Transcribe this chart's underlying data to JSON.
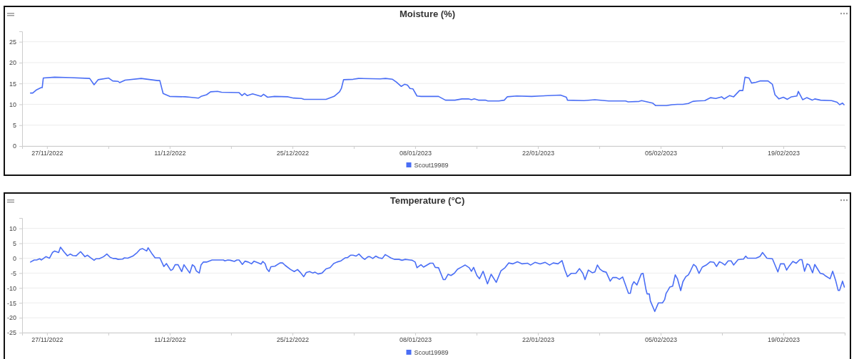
{
  "chart_data": [
    {
      "type": "line",
      "title": "Moisture (%)",
      "legend": "bottom",
      "grid": "y",
      "marker": "none",
      "line_style": "solid",
      "xlim": [
        "2022-11-24T04:00",
        "2023-02-26T00:00"
      ],
      "xticks": [
        {
          "value": "2022-11-27",
          "label": "27/11/2022"
        },
        {
          "value": "2022-12-04",
          "label": null
        },
        {
          "value": "2022-12-11",
          "label": "11/12/2022"
        },
        {
          "value": "2022-12-18",
          "label": null
        },
        {
          "value": "2022-12-25",
          "label": "25/12/2022"
        },
        {
          "value": "2023-01-01",
          "label": null
        },
        {
          "value": "2023-01-08",
          "label": "08/01/2023"
        },
        {
          "value": "2023-01-15",
          "label": null
        },
        {
          "value": "2023-01-22",
          "label": "22/01/2023"
        },
        {
          "value": "2023-01-29",
          "label": null
        },
        {
          "value": "2023-02-05",
          "label": "05/02/2023"
        },
        {
          "value": "2023-02-12",
          "label": null
        },
        {
          "value": "2023-02-19",
          "label": "19/02/2023"
        },
        {
          "value": "2023-02-26",
          "label": null
        }
      ],
      "ylim": [
        0,
        27.5
      ],
      "yticks": [
        0,
        5,
        10,
        15,
        20,
        25
      ],
      "x": [
        "2022-11-25T03:00",
        "2022-11-25T09:00",
        "2022-11-25T20:00",
        "2022-11-26T08:00",
        "2022-11-26T11:00",
        "2022-11-26T14:00",
        "2022-11-27T21:00",
        "2022-11-29T17:00",
        "2022-12-01T21:00",
        "2022-12-02T09:00",
        "2022-12-02T20:00",
        "2022-12-04T01:00",
        "2022-12-04T12:00",
        "2022-12-05T03:00",
        "2022-12-05T07:00",
        "2022-12-05T22:00",
        "2022-12-07T18:00",
        "2022-12-09T15:00",
        "2022-12-09T21:00",
        "2022-12-10T06:00",
        "2022-12-11T00:00",
        "2022-12-12T18:00",
        "2022-12-13T08:00",
        "2022-12-14T07:00",
        "2022-12-14T14:00",
        "2022-12-15T05:00",
        "2022-12-15T16:00",
        "2022-12-16T11:00",
        "2022-12-16T22:00",
        "2022-12-18T22:00",
        "2022-12-19T06:00",
        "2022-12-19T13:00",
        "2022-12-19T20:00",
        "2022-12-20T11:00",
        "2022-12-21T10:00",
        "2022-12-21T17:00",
        "2022-12-22T04:00",
        "2022-12-22T23:00",
        "2022-12-24T12:00",
        "2022-12-25T03:00",
        "2022-12-26T01:00",
        "2022-12-26T08:00",
        "2022-12-28T20:00",
        "2022-12-29T18:00",
        "2022-12-30T09:00",
        "2022-12-30T14:00",
        "2022-12-30T20:00",
        "2022-12-31T22:00",
        "2023-01-01T13:00",
        "2023-01-04T00:00",
        "2023-01-04T15:00",
        "2023-01-05T10:00",
        "2023-01-05T21:00",
        "2023-01-06T10:00",
        "2023-01-06T19:00",
        "2023-01-07T03:00",
        "2023-01-07T10:00",
        "2023-01-07T18:00",
        "2023-01-08T05:00",
        "2023-01-08T16:00",
        "2023-01-10T16:00",
        "2023-01-11T11:00",
        "2023-01-12T13:00",
        "2023-01-13T08:00",
        "2023-01-14T02:00",
        "2023-01-14T10:00",
        "2023-01-14T18:00",
        "2023-01-15T05:00",
        "2023-01-16T00:00",
        "2023-01-16T07:00",
        "2023-01-17T13:00",
        "2023-01-18T04:00",
        "2023-01-18T12:00",
        "2023-01-19T14:00",
        "2023-01-21T07:00",
        "2023-01-22T06:00",
        "2023-01-24T14:00",
        "2023-01-25T06:00",
        "2023-01-25T09:00",
        "2023-01-27T06:00",
        "2023-01-28T12:00",
        "2023-01-30T02:00",
        "2023-02-01T00:00",
        "2023-02-01T07:00",
        "2023-02-02T13:00",
        "2023-02-02T20:00",
        "2023-02-04T02:00",
        "2023-02-04T10:00",
        "2023-02-05T16:00",
        "2023-02-06T07:00",
        "2023-02-06T22:00",
        "2023-02-07T13:00",
        "2023-02-08T04:00",
        "2023-02-08T16:00",
        "2023-02-09T03:00",
        "2023-02-10T01:00",
        "2023-02-10T17:00",
        "2023-02-11T07:00",
        "2023-02-11T23:00",
        "2023-02-12T06:00",
        "2023-02-12T21:00",
        "2023-02-13T08:00",
        "2023-02-14T00:00",
        "2023-02-14T09:00",
        "2023-02-14T15:00",
        "2023-02-15T02:00",
        "2023-02-15T09:00",
        "2023-02-15T21:00",
        "2023-02-16T08:00",
        "2023-02-17T06:00",
        "2023-02-17T18:00",
        "2023-02-18T01:00",
        "2023-02-18T12:00",
        "2023-02-19T00:00",
        "2023-02-19T11:00",
        "2023-02-19T22:00",
        "2023-02-20T13:00",
        "2023-02-20T17:00",
        "2023-02-21T05:00",
        "2023-02-21T16:00",
        "2023-02-22T07:00",
        "2023-02-22T14:00",
        "2023-02-23T06:00",
        "2023-02-24T12:00",
        "2023-02-25T03:00",
        "2023-02-25T10:00",
        "2023-02-25T18:00",
        "2023-02-25T22:00"
      ],
      "series": [
        {
          "name": "Scout19989",
          "color": "#4a6ef5",
          "values": [
            12.7,
            12.7,
            13.5,
            14.0,
            14.0,
            16.3,
            16.5,
            16.4,
            16.2,
            14.7,
            15.9,
            16.3,
            15.6,
            15.5,
            15.2,
            15.8,
            16.2,
            15.7,
            15.7,
            12.6,
            11.9,
            11.8,
            11.7,
            11.5,
            11.9,
            12.3,
            13.0,
            13.1,
            12.9,
            12.8,
            12.1,
            12.6,
            12.1,
            12.5,
            11.9,
            12.4,
            11.7,
            11.9,
            11.8,
            11.5,
            11.4,
            11.2,
            11.2,
            11.9,
            13.0,
            13.8,
            15.9,
            16.0,
            16.2,
            16.1,
            16.2,
            16.0,
            15.3,
            14.3,
            14.8,
            14.6,
            13.8,
            13.7,
            12.0,
            11.9,
            11.9,
            11.0,
            11.0,
            11.3,
            11.3,
            11.1,
            11.3,
            11.0,
            11.0,
            10.8,
            10.8,
            11.0,
            11.8,
            12.0,
            11.9,
            12.0,
            12.2,
            11.7,
            11.0,
            10.9,
            11.1,
            10.8,
            10.8,
            10.6,
            10.7,
            10.9,
            10.3,
            9.7,
            9.7,
            9.9,
            10.0,
            10.0,
            10.2,
            10.7,
            10.8,
            10.9,
            11.6,
            11.4,
            11.8,
            11.3,
            12.1,
            11.8,
            13.3,
            13.3,
            16.5,
            16.3,
            15.1,
            15.3,
            15.6,
            15.6,
            14.8,
            12.3,
            11.3,
            11.7,
            11.2,
            11.8,
            12.0,
            13.1,
            11.1,
            11.6,
            11.0,
            11.3,
            11.0,
            10.9,
            10.5,
            9.9,
            10.3,
            9.9
          ]
        }
      ]
    },
    {
      "type": "line",
      "title": "Temperature (°C)",
      "legend": "bottom",
      "grid": "y",
      "marker": "none",
      "line_style": "solid",
      "xlim": [
        "2022-11-24T04:00",
        "2023-02-26T00:00"
      ],
      "xticks": [
        {
          "value": "2022-11-27",
          "label": "27/11/2022"
        },
        {
          "value": "2022-12-04",
          "label": null
        },
        {
          "value": "2022-12-11",
          "label": "11/12/2022"
        },
        {
          "value": "2022-12-18",
          "label": null
        },
        {
          "value": "2022-12-25",
          "label": "25/12/2022"
        },
        {
          "value": "2023-01-01",
          "label": null
        },
        {
          "value": "2023-01-08",
          "label": "08/01/2023"
        },
        {
          "value": "2023-01-15",
          "label": null
        },
        {
          "value": "2023-01-22",
          "label": "22/01/2023"
        },
        {
          "value": "2023-01-29",
          "label": null
        },
        {
          "value": "2023-02-05",
          "label": "05/02/2023"
        },
        {
          "value": "2023-02-12",
          "label": null
        },
        {
          "value": "2023-02-19",
          "label": "19/02/2023"
        },
        {
          "value": "2023-02-26",
          "label": null
        }
      ],
      "ylim": [
        -25,
        13.5
      ],
      "yticks": [
        -25,
        -20,
        -15,
        -10,
        -5,
        0,
        5,
        10
      ],
      "x": [
        "2022-11-25T03:00",
        "2022-11-25T13:00",
        "2022-11-25T20:00",
        "2022-11-26T04:00",
        "2022-11-26T09:00",
        "2022-11-26T21:00",
        "2022-11-27T07:00",
        "2022-11-27T15:00",
        "2022-11-27T21:00",
        "2022-11-28T08:00",
        "2022-11-28T13:00",
        "2022-11-28T23:00",
        "2022-11-29T08:00",
        "2022-11-29T16:00",
        "2022-11-29T23:00",
        "2022-11-30T08:00",
        "2022-11-30T20:00",
        "2022-12-01T08:00",
        "2022-12-01T15:00",
        "2022-12-01T23:00",
        "2022-12-02T09:00",
        "2022-12-02T14:00",
        "2022-12-02T23:00",
        "2022-12-03T11:00",
        "2022-12-03T20:00",
        "2022-12-04T05:00",
        "2022-12-04T13:00",
        "2022-12-04T20:00",
        "2022-12-05T03:00",
        "2022-12-05T15:00",
        "2022-12-05T20:00",
        "2022-12-06T05:00",
        "2022-12-06T19:00",
        "2022-12-07T07:00",
        "2022-12-07T15:00",
        "2022-12-07T22:00",
        "2022-12-08T09:00",
        "2022-12-08T13:00",
        "2022-12-09T00:00",
        "2022-12-09T08:00",
        "2022-12-09T21:00",
        "2022-12-10T08:00",
        "2022-12-10T15:00",
        "2022-12-11T03:00",
        "2022-12-11T08:00",
        "2022-12-11T15:00",
        "2022-12-11T23:00",
        "2022-12-12T09:00",
        "2022-12-12T15:00",
        "2022-12-13T07:00",
        "2022-12-13T14:00",
        "2022-12-13T20:00",
        "2022-12-14T01:00",
        "2022-12-14T09:00",
        "2022-12-14T14:00",
        "2022-12-14T20:00",
        "2022-12-15T05:00",
        "2022-12-15T20:00",
        "2022-12-16T11:00",
        "2022-12-17T03:00",
        "2022-12-17T07:00",
        "2022-12-17T15:00",
        "2022-12-17T22:00",
        "2022-12-18T09:00",
        "2022-12-18T16:00",
        "2022-12-18T22:00",
        "2022-12-19T07:00",
        "2022-12-19T14:00",
        "2022-12-19T23:00",
        "2022-12-20T08:00",
        "2022-12-20T15:00",
        "2022-12-21T01:00",
        "2022-12-21T10:00",
        "2022-12-21T15:00",
        "2022-12-21T21:00",
        "2022-12-22T02:00",
        "2022-12-22T08:00",
        "2022-12-22T13:00",
        "2022-12-23T00:00",
        "2022-12-23T14:00",
        "2022-12-23T21:00",
        "2022-12-24T04:00",
        "2022-12-24T19:00",
        "2022-12-25T05:00",
        "2022-12-25T14:00",
        "2022-12-25T21:00",
        "2022-12-26T07:00",
        "2022-12-26T14:00",
        "2022-12-26T23:00",
        "2022-12-27T08:00",
        "2022-12-27T14:00",
        "2022-12-27T22:00",
        "2022-12-28T09:00",
        "2022-12-28T20:00",
        "2022-12-29T07:00",
        "2022-12-29T17:00",
        "2022-12-30T02:00",
        "2022-12-30T13:00",
        "2022-12-31T00:00",
        "2022-12-31T07:00",
        "2022-12-31T15:00",
        "2022-12-31T22:00",
        "2023-01-01T06:00",
        "2023-01-01T14:00",
        "2023-01-02T00:00",
        "2023-01-02T06:00",
        "2023-01-02T15:00",
        "2023-01-02T20:00",
        "2023-01-03T04:00",
        "2023-01-03T12:00",
        "2023-01-03T21:00",
        "2023-01-04T06:00",
        "2023-01-04T14:00",
        "2023-01-04T20:00",
        "2023-01-05T05:00",
        "2023-01-05T15:00",
        "2023-01-06T04:00",
        "2023-01-06T12:00",
        "2023-01-06T21:00",
        "2023-01-07T10:00",
        "2023-01-07T16:00",
        "2023-01-08T00:00",
        "2023-01-08T05:00",
        "2023-01-08T16:00",
        "2023-01-08T23:00",
        "2023-01-09T17:00",
        "2023-01-10T01:00",
        "2023-01-10T07:00",
        "2023-01-10T16:00",
        "2023-01-11T05:00",
        "2023-01-11T10:00",
        "2023-01-11T18:00",
        "2023-01-12T02:00",
        "2023-01-12T11:00",
        "2023-01-12T20:00",
        "2023-01-13T08:00",
        "2023-01-13T17:00",
        "2023-01-14T04:00",
        "2023-01-14T10:00",
        "2023-01-14T16:00",
        "2023-01-15T01:00",
        "2023-01-15T08:00",
        "2023-01-15T18:00",
        "2023-01-16T06:00",
        "2023-01-16T16:00",
        "2023-01-17T06:00",
        "2023-01-17T19:00",
        "2023-01-18T06:00",
        "2023-01-18T16:00",
        "2023-01-19T03:00",
        "2023-01-19T16:00",
        "2023-01-20T05:00",
        "2023-01-20T20:00",
        "2023-01-21T04:00",
        "2023-01-21T16:00",
        "2023-01-22T06:00",
        "2023-01-22T20:00",
        "2023-01-23T08:00",
        "2023-01-23T18:00",
        "2023-01-24T07:00",
        "2023-01-24T18:00",
        "2023-01-25T02:00",
        "2023-01-25T09:00",
        "2023-01-25T19:00",
        "2023-01-26T08:00",
        "2023-01-26T18:00",
        "2023-01-27T03:00",
        "2023-01-27T09:00",
        "2023-01-27T18:00",
        "2023-01-28T05:00",
        "2023-01-28T12:00",
        "2023-01-28T19:00",
        "2023-01-29T02:00",
        "2023-01-29T10:00",
        "2023-01-29T19:00",
        "2023-01-30T06:00",
        "2023-01-30T13:00",
        "2023-01-30T23:00",
        "2023-01-31T07:00",
        "2023-01-31T16:00",
        "2023-02-01T08:00",
        "2023-02-01T13:00",
        "2023-02-01T18:00",
        "2023-02-01T23:00",
        "2023-02-02T07:00",
        "2023-02-02T19:00",
        "2023-02-03T00:00",
        "2023-02-03T08:00",
        "2023-02-03T11:00",
        "2023-02-03T17:00",
        "2023-02-03T20:00",
        "2023-02-04T08:00",
        "2023-02-04T18:00",
        "2023-02-05T05:00",
        "2023-02-05T11:00",
        "2023-02-05T15:00",
        "2023-02-05T20:00",
        "2023-02-06T01:00",
        "2023-02-06T09:00",
        "2023-02-06T16:00",
        "2023-02-06T22:00",
        "2023-02-07T07:00",
        "2023-02-07T13:00",
        "2023-02-07T21:00",
        "2023-02-08T04:00",
        "2023-02-08T10:00",
        "2023-02-08T18:00",
        "2023-02-09T01:00",
        "2023-02-09T09:00",
        "2023-02-09T18:00",
        "2023-02-10T05:00",
        "2023-02-10T16:00",
        "2023-02-11T02:00",
        "2023-02-11T09:00",
        "2023-02-11T17:00",
        "2023-02-12T00:00",
        "2023-02-12T08:00",
        "2023-02-12T17:00",
        "2023-02-13T01:00",
        "2023-02-13T08:00",
        "2023-02-13T20:00",
        "2023-02-14T11:00",
        "2023-02-14T17:00",
        "2023-02-14T22:00",
        "2023-02-15T21:00",
        "2023-02-16T08:00",
        "2023-02-16T15:00",
        "2023-02-17T03:00",
        "2023-02-17T18:00",
        "2023-02-18T09:00",
        "2023-02-18T16:00",
        "2023-02-19T02:00",
        "2023-02-19T09:00",
        "2023-02-19T15:00",
        "2023-02-20T02:00",
        "2023-02-20T11:00",
        "2023-02-20T21:00",
        "2023-02-21T03:00",
        "2023-02-21T10:00",
        "2023-02-21T17:00",
        "2023-02-21T23:00",
        "2023-02-22T08:00",
        "2023-02-22T14:00",
        "2023-02-23T05:00",
        "2023-02-23T13:00",
        "2023-02-23T20:00",
        "2023-02-24T08:00",
        "2023-02-24T15:00",
        "2023-02-24T23:00",
        "2023-02-25T06:00",
        "2023-02-25T10:00",
        "2023-02-25T18:00",
        "2023-02-25T23:00"
      ],
      "series": [
        {
          "name": "Scout19989",
          "color": "#4a6ef5",
          "values": [
            -1.3,
            -0.6,
            -0.6,
            -0.2,
            -0.6,
            0.5,
            0,
            1.9,
            2.4,
            1.9,
            3.7,
            2.1,
            0.8,
            1.4,
            0.9,
            0.8,
            2.2,
            0.5,
            1.0,
            0.2,
            -0.7,
            -0.2,
            -0.2,
            0.5,
            1.4,
            0.3,
            -0.1,
            -0.1,
            -0.4,
            -0.3,
            0.1,
            0,
            0.7,
            1.9,
            3.0,
            3.2,
            2.4,
            3.5,
            1.4,
            0.1,
            0.1,
            -2.8,
            -1.8,
            -4.1,
            -3.8,
            -2.2,
            -2.2,
            -4.5,
            -2.2,
            -5.0,
            -2.2,
            -2.8,
            -4.3,
            -5.0,
            -2.2,
            -1.3,
            -1.3,
            -0.6,
            -0.6,
            -0.6,
            -0.9,
            -0.6,
            -0.7,
            -1.1,
            -0.6,
            -0.6,
            -2.1,
            -1.0,
            -1.3,
            -1.9,
            -1.0,
            -1.5,
            -2.0,
            -1.1,
            -1.8,
            -3.6,
            -4.5,
            -2.9,
            -2.7,
            -1.6,
            -1.6,
            -2.4,
            -3.8,
            -4.5,
            -3.8,
            -4.7,
            -6.2,
            -4.8,
            -4.5,
            -5.0,
            -4.7,
            -5.3,
            -5.0,
            -3.6,
            -3.2,
            -1.8,
            -1.3,
            -0.9,
            0.1,
            0.2,
            1.0,
            1.0,
            0.7,
            1.4,
            0.1,
            -0.4,
            0.5,
            0.5,
            -0.1,
            0.7,
            0.1,
            -0.1,
            1.2,
            0.8,
            0.1,
            -0.4,
            -0.4,
            -0.7,
            -0.4,
            -0.6,
            -0.7,
            -1.3,
            -3.2,
            -2.2,
            -3.0,
            -1.7,
            -1.7,
            -3.1,
            -3.2,
            -7.2,
            -7.2,
            -5.4,
            -5.8,
            -5.1,
            -3.7,
            -2.9,
            -2.3,
            -3.2,
            -4.4,
            -3.1,
            -5.8,
            -6.9,
            -4.4,
            -8.6,
            -5.4,
            -8.1,
            -4.2,
            -3.2,
            -1.6,
            -1.9,
            -1.2,
            -1.9,
            -1.7,
            -2.3,
            -1.4,
            -1.9,
            -1.4,
            -2.3,
            -1.6,
            -1.9,
            -0.8,
            -4.0,
            -6.2,
            -5.1,
            -5.1,
            -3.5,
            -5.1,
            -7.2,
            -4.0,
            -4.9,
            -4.6,
            -2.3,
            -3.7,
            -4.4,
            -4.7,
            -7.7,
            -6.5,
            -6.5,
            -7.1,
            -6.3,
            -11.8,
            -11.8,
            -9.0,
            -7.9,
            -9.0,
            -5.3,
            -5.1,
            -10.6,
            -12.0,
            -12.0,
            -14.4,
            -17.9,
            -15.0,
            -15.0,
            -13.9,
            -11.8,
            -10.8,
            -9.7,
            -9.4,
            -5.6,
            -6.9,
            -10.9,
            -7.9,
            -6.2,
            -5.6,
            -4.2,
            -2.1,
            -2.8,
            -5.1,
            -3.0,
            -2.3,
            -1.2,
            -1.4,
            -2.8,
            -1.2,
            -1.6,
            -2.3,
            -0.9,
            -0.9,
            -2.3,
            -0.5,
            -0.3,
            0.7,
            0,
            0,
            0.6,
            1.9,
            0,
            -0.2,
            -4.6,
            -1.9,
            -1.9,
            -4.0,
            -2.8,
            -1.1,
            -1.7,
            -0.5,
            -0.5,
            -4.4,
            -1.9,
            -2.3,
            -4.9,
            -2.1,
            -5.1,
            -5.3,
            -6.0,
            -6.9,
            -4.4,
            -7.4,
            -10.8,
            -10.8,
            -7.7,
            -9.7
          ]
        }
      ]
    }
  ]
}
